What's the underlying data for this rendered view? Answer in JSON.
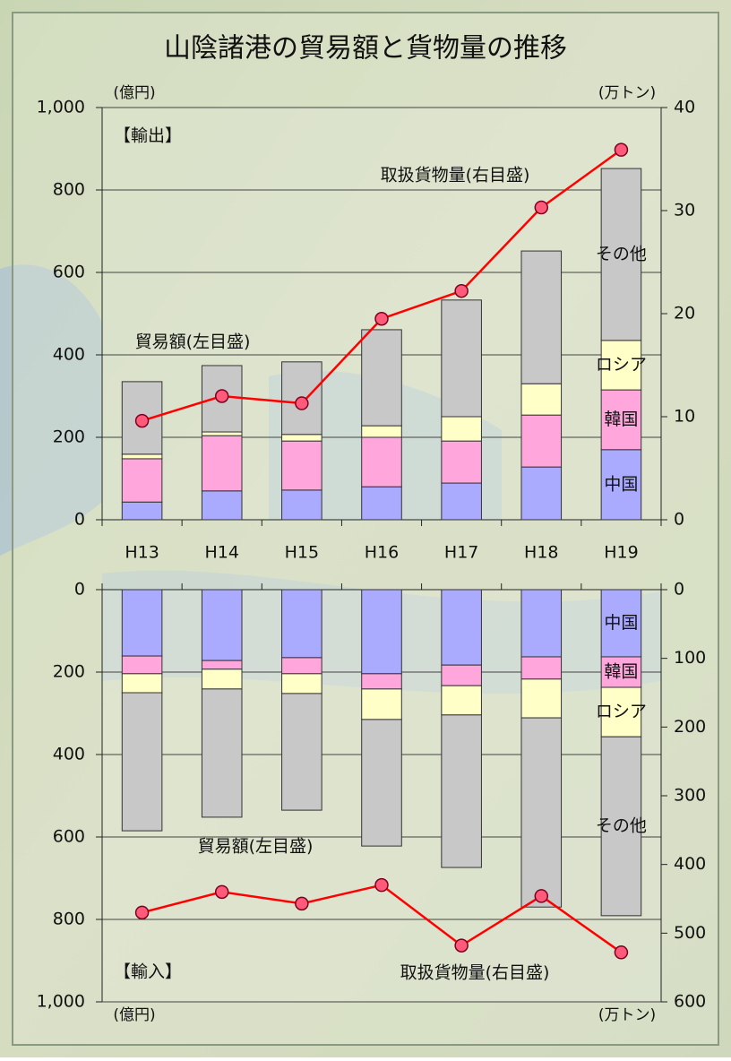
{
  "chart_data": [
    {
      "type": "stacked_bar_line",
      "title": "山陰諸港の貿易額と貨物量の推移",
      "panel_label": "【輸出】",
      "y_unit_label": "(億円)",
      "y2_unit_label": "(万トン)",
      "annotation": "貿易額(左目盛)",
      "categories": [
        "H13",
        "H14",
        "H15",
        "H16",
        "H17",
        "H18",
        "H19"
      ],
      "ylim": [
        0,
        1000
      ],
      "yticks": [
        0,
        200,
        400,
        600,
        800,
        {
          "value": 1000,
          "label": "1,000"
        }
      ],
      "y2lim": [
        0,
        40
      ],
      "y2ticks": [
        0,
        10,
        20,
        30,
        40
      ],
      "inverted": false,
      "grid": true,
      "series": [
        {
          "name": "中国",
          "color": "#aaaaff",
          "values": [
            43,
            70,
            72,
            80,
            89,
            128,
            170
          ]
        },
        {
          "name": "韓国",
          "color": "#ffa6dd",
          "values": [
            105,
            134,
            119,
            120,
            102,
            126,
            145
          ]
        },
        {
          "name": "ロシア",
          "color": "#ffffc8",
          "values": [
            11,
            9,
            16,
            28,
            59,
            76,
            120
          ]
        },
        {
          "name": "その他",
          "color": "#c8c8c8",
          "values": [
            176,
            161,
            176,
            233,
            283,
            322,
            417
          ]
        },
        {
          "name": "取扱貨物量(右目盛)",
          "color": "#ff0000",
          "axis": "y2",
          "line": true,
          "values": [
            9.6,
            12.0,
            11.3,
            19.5,
            22.2,
            30.3,
            35.9
          ]
        }
      ]
    },
    {
      "type": "stacked_bar_line",
      "panel_label": "【輸入】",
      "y_unit_label": "(億円)",
      "y2_unit_label": "(万トン)",
      "annotation": "貿易額(左目盛)",
      "ylim": [
        0,
        1000
      ],
      "yticks": [
        0,
        200,
        400,
        600,
        800,
        {
          "value": 1000,
          "label": "1,000"
        }
      ],
      "y2lim": [
        0,
        600
      ],
      "y2ticks": [
        0,
        100,
        200,
        300,
        400,
        500,
        600
      ],
      "inverted": true,
      "grid": true,
      "series": [
        {
          "name": "中国",
          "color": "#aaaaff",
          "values": [
            161,
            172,
            165,
            204,
            183,
            163,
            163
          ]
        },
        {
          "name": "韓国",
          "color": "#ffa6dd",
          "values": [
            43,
            21,
            39,
            37,
            50,
            54,
            74
          ]
        },
        {
          "name": "ロシア",
          "color": "#ffffc8",
          "values": [
            46,
            48,
            48,
            74,
            71,
            94,
            120
          ]
        },
        {
          "name": "その他",
          "color": "#c8c8c8",
          "values": [
            335,
            311,
            283,
            307,
            370,
            459,
            434
          ]
        },
        {
          "name": "取扱貨物量(右目盛)",
          "color": "#ff0000",
          "axis": "y2",
          "line": true,
          "values": [
            470,
            440,
            457,
            430,
            518,
            446,
            528
          ]
        }
      ]
    }
  ]
}
